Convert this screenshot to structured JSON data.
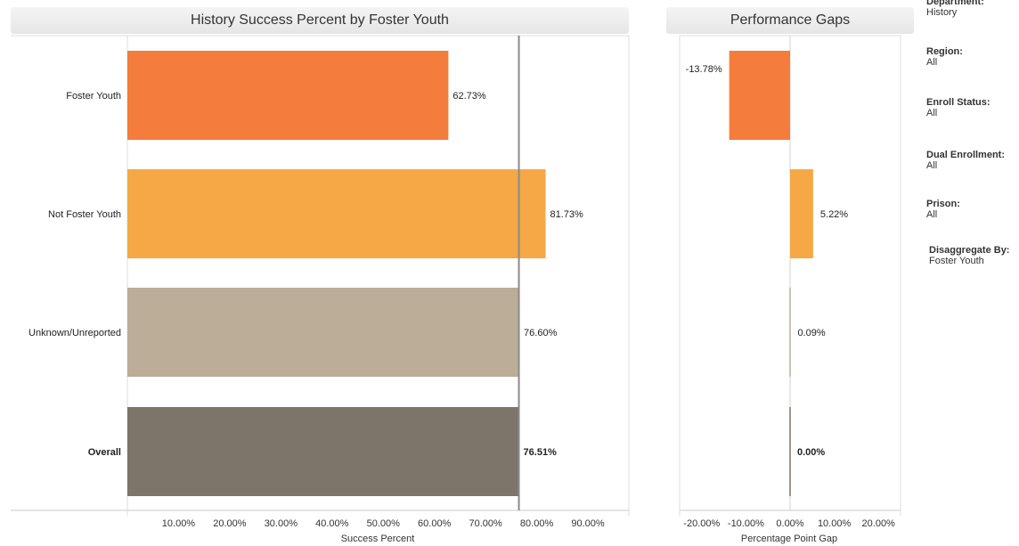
{
  "chart_data": [
    {
      "type": "bar",
      "orientation": "horizontal",
      "title": "History Success Percent by Foster Youth",
      "xlabel": "Success Percent",
      "xlim": [
        0,
        98
      ],
      "ticks": [
        "10.00%",
        "20.00%",
        "30.00%",
        "40.00%",
        "50.00%",
        "60.00%",
        "70.00%",
        "80.00%",
        "90.00%"
      ],
      "tick_values": [
        10,
        20,
        30,
        40,
        50,
        60,
        70,
        80,
        90
      ],
      "reference_line": 76.51,
      "categories": [
        "Foster Youth",
        "Not Foster Youth",
        "Unknown/Unreported",
        "Overall"
      ],
      "values": [
        62.73,
        81.73,
        76.6,
        76.51
      ],
      "labels": [
        "62.73%",
        "81.73%",
        "76.60%",
        "76.51%"
      ],
      "colors": [
        "#f47c3c",
        "#f5a845",
        "#bbad98",
        "#7d756a"
      ],
      "bold_category": "Overall",
      "grid": false
    },
    {
      "type": "bar",
      "orientation": "horizontal",
      "title": "Performance Gaps",
      "xlabel": "Percentage Point Gap",
      "xlim": [
        -25,
        25
      ],
      "ticks": [
        "-20.00%",
        "-10.00%",
        "0.00%",
        "10.00%",
        "20.00%"
      ],
      "tick_values": [
        -20,
        -10,
        0,
        10,
        20
      ],
      "categories": [
        "Foster Youth",
        "Not Foster Youth",
        "Unknown/Unreported",
        "Overall"
      ],
      "values": [
        -13.78,
        5.22,
        0.09,
        0.0
      ],
      "labels": [
        "-13.78%",
        "5.22%",
        "0.09%",
        "0.00%"
      ],
      "colors": [
        "#f47c3c",
        "#f5a845",
        "#bbad98",
        "#7d756a"
      ],
      "grid": false
    }
  ],
  "filters": [
    {
      "label": "Department:",
      "value": "History"
    },
    {
      "label": "Region:",
      "value": "All"
    },
    {
      "label": "Enroll Status:",
      "value": "All"
    },
    {
      "label": "Dual Enrollment:",
      "value": "All"
    },
    {
      "label": "Prison:",
      "value": "All"
    },
    {
      "label": "Disaggregate By:",
      "value": "Foster Youth"
    }
  ]
}
